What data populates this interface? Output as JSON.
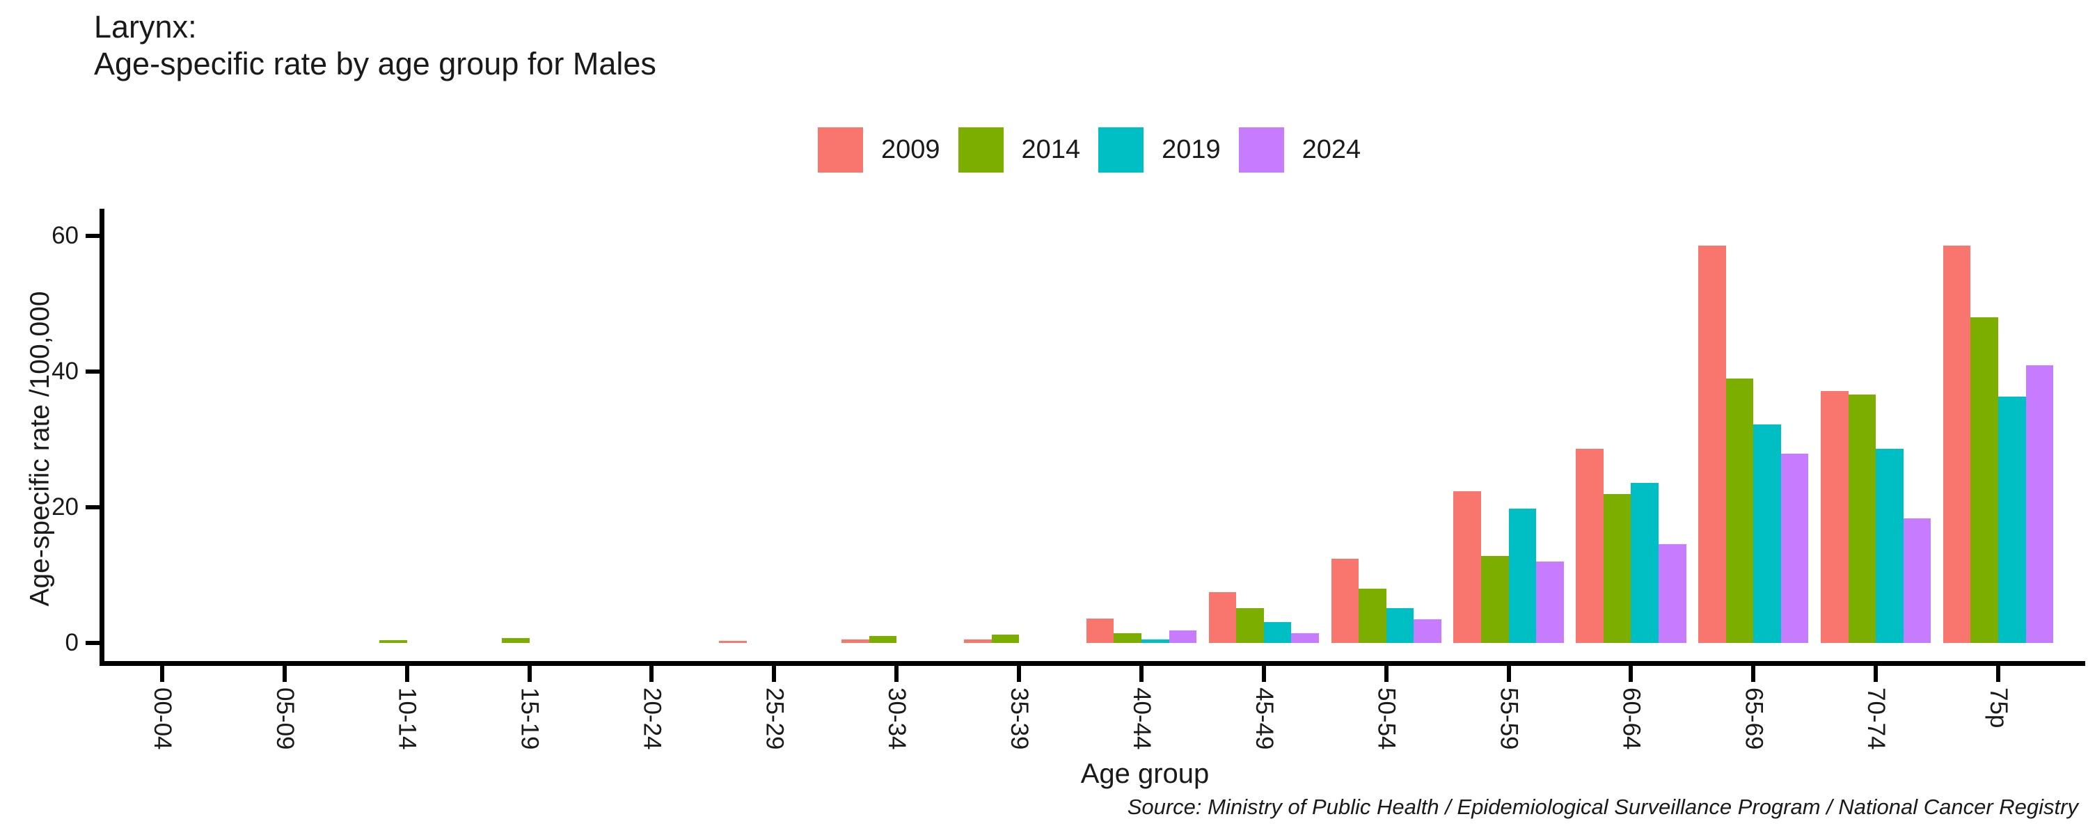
{
  "title": {
    "line1": "Larynx:",
    "line2": "Age-specific rate by age group for Males"
  },
  "legend": {
    "items": [
      {
        "label": "2009",
        "color": "#F8766D"
      },
      {
        "label": "2014",
        "color": "#7CAE00"
      },
      {
        "label": "2019",
        "color": "#00BFC4"
      },
      {
        "label": "2024",
        "color": "#C77CFF"
      }
    ]
  },
  "y_axis": {
    "label": "Age-specific rate /100,000"
  },
  "x_axis": {
    "label": "Age group"
  },
  "source": "Source: Ministry of Public Health / Epidemiological Surveillance Program / National Cancer Registry",
  "chart_data": {
    "type": "bar",
    "title": "Larynx: Age-specific rate by age group for Males",
    "categories": [
      "00-04",
      "05-09",
      "10-14",
      "15-19",
      "20-24",
      "25-29",
      "30-34",
      "35-39",
      "40-44",
      "45-49",
      "50-54",
      "55-59",
      "60-64",
      "65-69",
      "70-74",
      "75p"
    ],
    "series": [
      {
        "name": "2009",
        "color": "#F8766D",
        "values": [
          0,
          0,
          0,
          0,
          0,
          0.3,
          0.5,
          0.5,
          3.6,
          7.5,
          12.4,
          22.4,
          28.6,
          58.6,
          37.1,
          58.6
        ]
      },
      {
        "name": "2014",
        "color": "#7CAE00",
        "values": [
          0,
          0,
          0.4,
          0.7,
          0,
          0,
          1.0,
          1.2,
          1.4,
          5.1,
          8.0,
          12.8,
          22.0,
          39.0,
          36.6,
          48.0
        ]
      },
      {
        "name": "2019",
        "color": "#00BFC4",
        "values": [
          0,
          0,
          0,
          0,
          0,
          0,
          0,
          0,
          0.5,
          3.1,
          5.1,
          19.8,
          23.6,
          32.2,
          28.6,
          36.3
        ]
      },
      {
        "name": "2024",
        "color": "#C77CFF",
        "values": [
          0,
          0,
          0,
          0,
          0,
          0,
          0,
          0,
          1.8,
          1.4,
          3.5,
          12.0,
          14.6,
          27.9,
          18.4,
          40.9
        ]
      }
    ],
    "xlabel": "Age group",
    "ylabel": "Age-specific rate /100,000",
    "ylim": [
      0,
      60
    ],
    "yticks": [
      0,
      20,
      40,
      60
    ],
    "grid": false,
    "legend_position": "top"
  }
}
